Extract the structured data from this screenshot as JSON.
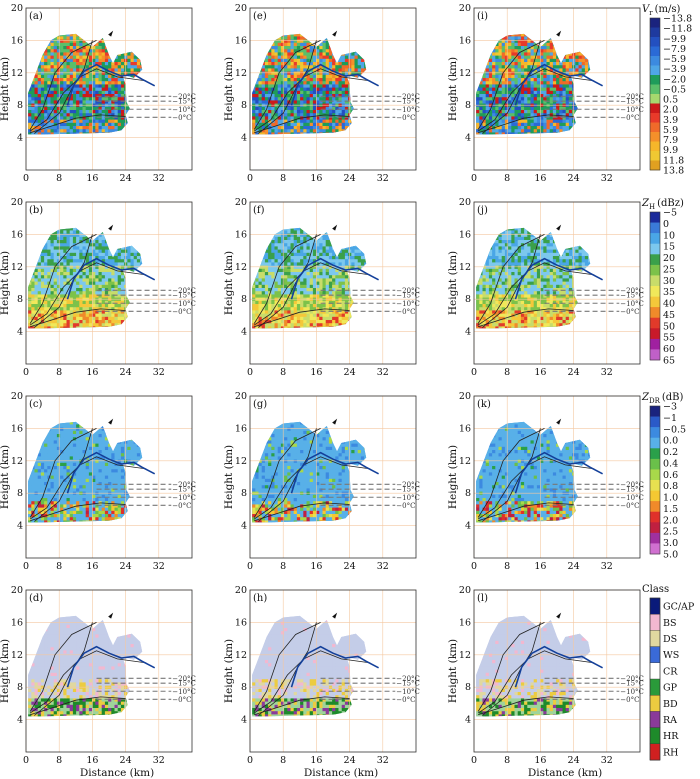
{
  "figure": {
    "x_label": "Distance (km)",
    "y_label": "Height (km)",
    "columns": 3,
    "rows": 4
  },
  "chart_data": {
    "type": "heatmap",
    "description_free": true,
    "x_ticks": [
      0,
      8,
      16,
      24,
      32
    ],
    "y_ticks": [
      4,
      8,
      12,
      16,
      20
    ],
    "xlim": [
      0,
      40
    ],
    "ylim": [
      0,
      20
    ],
    "isotherms": [
      {
        "label": "−20°C",
        "height": 9.1
      },
      {
        "label": "−15°C",
        "height": 8.5
      },
      {
        "label": "−10°C",
        "height": 7.5
      },
      {
        "label": "−0°C",
        "height": 6.5
      }
    ],
    "panels": [
      {
        "id": "a",
        "label": "(a)",
        "row": 0,
        "col": 0,
        "variable": "Vr"
      },
      {
        "id": "e",
        "label": "(e)",
        "row": 0,
        "col": 1,
        "variable": "Vr"
      },
      {
        "id": "i",
        "label": "(i)",
        "row": 0,
        "col": 2,
        "variable": "Vr"
      },
      {
        "id": "b",
        "label": "(b)",
        "row": 1,
        "col": 0,
        "variable": "ZH"
      },
      {
        "id": "f",
        "label": "(f)",
        "row": 1,
        "col": 1,
        "variable": "ZH"
      },
      {
        "id": "j",
        "label": "(j)",
        "row": 1,
        "col": 2,
        "variable": "ZH"
      },
      {
        "id": "c",
        "label": "(c)",
        "row": 2,
        "col": 0,
        "variable": "ZDR"
      },
      {
        "id": "g",
        "label": "(g)",
        "row": 2,
        "col": 1,
        "variable": "ZDR"
      },
      {
        "id": "k",
        "label": "(k)",
        "row": 2,
        "col": 2,
        "variable": "ZDR"
      },
      {
        "id": "d",
        "label": "(d)",
        "row": 3,
        "col": 0,
        "variable": "Class"
      },
      {
        "id": "h",
        "label": "(h)",
        "row": 3,
        "col": 1,
        "variable": "Class"
      },
      {
        "id": "l",
        "label": "(l)",
        "row": 3,
        "col": 2,
        "variable": "Class"
      }
    ],
    "colorbars": [
      {
        "title_main": "V",
        "title_sub": "r",
        "title_unit": "(m/s)",
        "ticks": [
          "−13.8",
          "−11.8",
          "−9.9",
          "−7.9",
          "−5.9",
          "−3.9",
          "−2.0",
          "−0.5",
          "0.5",
          "2.0",
          "3.9",
          "5.9",
          "7.9",
          "9.9",
          "11.8",
          "13.8"
        ],
        "colors": [
          "#1a237e",
          "#1e3a9f",
          "#2350c0",
          "#2a6ad6",
          "#3c8ae0",
          "#4fa6e6",
          "#1e9c5a",
          "#5abf6a",
          "#a6d86e",
          "#cc1a1a",
          "#e83a2a",
          "#f06a2a",
          "#f4902a",
          "#f6b62a",
          "#f0c832",
          "#e0a020"
        ]
      },
      {
        "title_main": "Z",
        "title_sub": "H",
        "title_unit": "(dBz)",
        "ticks": [
          "−5",
          "0",
          "10",
          "15",
          "20",
          "25",
          "30",
          "35",
          "40",
          "45",
          "50",
          "55",
          "60",
          "65"
        ],
        "colors": [
          "#1a2a9a",
          "#3a7ad8",
          "#4aa6e6",
          "#7cc8ee",
          "#3aa04a",
          "#7cc24a",
          "#c8dc6a",
          "#f0e85a",
          "#f4c83a",
          "#f08a2a",
          "#e23a2a",
          "#c81a2a",
          "#a020a0",
          "#c060c8"
        ]
      },
      {
        "title_main": "Z",
        "title_sub": "DR",
        "title_unit": "(dB)",
        "ticks": [
          "−3",
          "−1",
          "−0.5",
          "0.0",
          "0.2",
          "0.4",
          "0.6",
          "0.8",
          "1.0",
          "1.5",
          "2.0",
          "2.5",
          "3.0",
          "5.0"
        ],
        "colors": [
          "#1a237e",
          "#2a5ac8",
          "#3c8ae0",
          "#58b0e8",
          "#2aa04a",
          "#6ac04a",
          "#a8d84a",
          "#e8e050",
          "#f4c832",
          "#f08a2a",
          "#e0302a",
          "#c02040",
          "#a030a0",
          "#d070d0"
        ]
      },
      {
        "title_main": "Class",
        "title_sub": "",
        "title_unit": "",
        "ticks": [
          "GC/AP",
          "BS",
          "DS",
          "WS",
          "CR",
          "GP",
          "BD",
          "RA",
          "HR",
          "RH"
        ],
        "colors": [
          "#0a1a7a",
          "#f2b8d0",
          "#e0d8a0",
          "#3a6ad8",
          "#ffffff",
          "#2a9a3a",
          "#eccc40",
          "#8a3a9a",
          "#1e8a2a",
          "#d02020"
        ]
      }
    ]
  }
}
